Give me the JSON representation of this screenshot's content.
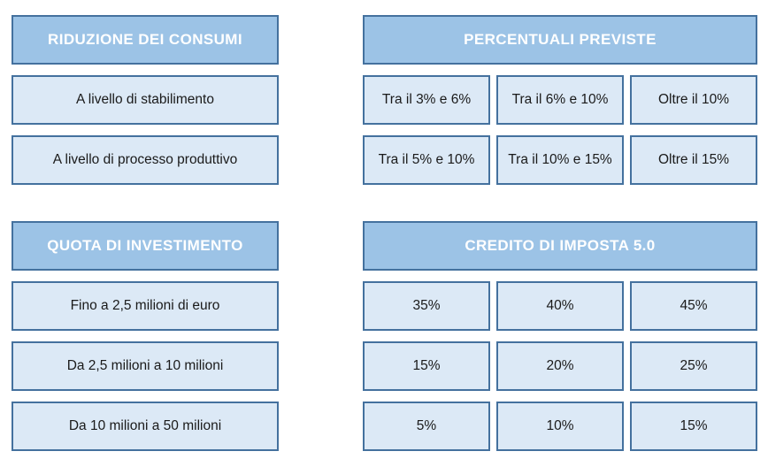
{
  "colors": {
    "header_fill": "#9CC3E6",
    "cell_fill": "#DCE9F6",
    "border": "#44719E",
    "header_text": "#FFFFFF",
    "cell_text": "#1A1A1A"
  },
  "top": {
    "left": {
      "header": "RIDUZIONE DEI CONSUMI",
      "rows": [
        "A livello di stabilimento",
        "A livello di processo produttivo"
      ]
    },
    "right": {
      "header": "PERCENTUALI PREVISTE",
      "rows": [
        [
          "Tra il 3% e 6%",
          "Tra il 6% e 10%",
          "Oltre il 10%"
        ],
        [
          "Tra il 5% e 10%",
          "Tra il 10% e 15%",
          "Oltre il 15%"
        ]
      ]
    }
  },
  "bottom": {
    "left": {
      "header": "QUOTA DI INVESTIMENTO",
      "rows": [
        "Fino a 2,5 milioni di euro",
        "Da 2,5 milioni a 10 milioni",
        "Da 10 milioni a 50 milioni"
      ]
    },
    "right": {
      "header": "CREDITO DI IMPOSTA 5.0",
      "rows": [
        [
          "35%",
          "40%",
          "45%"
        ],
        [
          "15%",
          "20%",
          "25%"
        ],
        [
          "5%",
          "10%",
          "15%"
        ]
      ]
    }
  }
}
